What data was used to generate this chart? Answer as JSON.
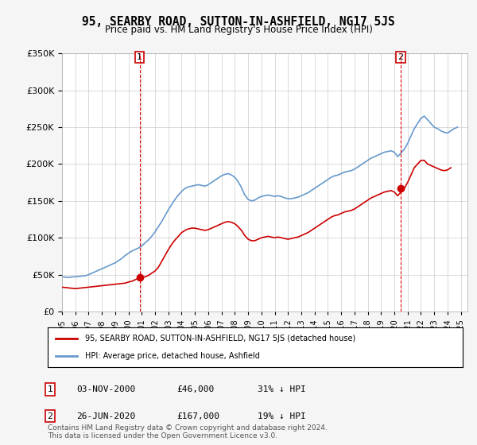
{
  "title": "95, SEARBY ROAD, SUTTON-IN-ASHFIELD, NG17 5JS",
  "subtitle": "Price paid vs. HM Land Registry's House Price Index (HPI)",
  "ylabel_ticks": [
    "£0",
    "£50K",
    "£100K",
    "£150K",
    "£200K",
    "£250K",
    "£300K",
    "£350K"
  ],
  "ylim": [
    0,
    350000
  ],
  "xlim_start": 1995.0,
  "xlim_end": 2025.5,
  "grid_color": "#cccccc",
  "bg_color": "#f5f5f5",
  "plot_bg": "#ffffff",
  "red_color": "#cc0000",
  "blue_color": "#6699cc",
  "vline_color": "#dd0000",
  "marker1_x": 2000.84,
  "marker1_y": 46000,
  "marker2_x": 2020.48,
  "marker2_y": 167000,
  "legend_red_label": "95, SEARBY ROAD, SUTTON-IN-ASHFIELD, NG17 5JS (detached house)",
  "legend_blue_label": "HPI: Average price, detached house, Ashfield",
  "table_row1": [
    "1",
    "03-NOV-2000",
    "£46,000",
    "31% ↓ HPI"
  ],
  "table_row2": [
    "2",
    "26-JUN-2020",
    "£167,000",
    "19% ↓ HPI"
  ],
  "footnote": "Contains HM Land Registry data © Crown copyright and database right 2024.\nThis data is licensed under the Open Government Licence v3.0.",
  "hpi_data_x": [
    1995.0,
    1995.25,
    1995.5,
    1995.75,
    1996.0,
    1996.25,
    1996.5,
    1996.75,
    1997.0,
    1997.25,
    1997.5,
    1997.75,
    1998.0,
    1998.25,
    1998.5,
    1998.75,
    1999.0,
    1999.25,
    1999.5,
    1999.75,
    2000.0,
    2000.25,
    2000.5,
    2000.75,
    2001.0,
    2001.25,
    2001.5,
    2001.75,
    2002.0,
    2002.25,
    2002.5,
    2002.75,
    2003.0,
    2003.25,
    2003.5,
    2003.75,
    2004.0,
    2004.25,
    2004.5,
    2004.75,
    2005.0,
    2005.25,
    2005.5,
    2005.75,
    2006.0,
    2006.25,
    2006.5,
    2006.75,
    2007.0,
    2007.25,
    2007.5,
    2007.75,
    2008.0,
    2008.25,
    2008.5,
    2008.75,
    2009.0,
    2009.25,
    2009.5,
    2009.75,
    2010.0,
    2010.25,
    2010.5,
    2010.75,
    2011.0,
    2011.25,
    2011.5,
    2011.75,
    2012.0,
    2012.25,
    2012.5,
    2012.75,
    2013.0,
    2013.25,
    2013.5,
    2013.75,
    2014.0,
    2014.25,
    2014.5,
    2014.75,
    2015.0,
    2015.25,
    2015.5,
    2015.75,
    2016.0,
    2016.25,
    2016.5,
    2016.75,
    2017.0,
    2017.25,
    2017.5,
    2017.75,
    2018.0,
    2018.25,
    2018.5,
    2018.75,
    2019.0,
    2019.25,
    2019.5,
    2019.75,
    2020.0,
    2020.25,
    2020.5,
    2020.75,
    2021.0,
    2021.25,
    2021.5,
    2021.75,
    2022.0,
    2022.25,
    2022.5,
    2022.75,
    2023.0,
    2023.25,
    2023.5,
    2023.75,
    2024.0,
    2024.25,
    2024.5,
    2024.75
  ],
  "hpi_data_y": [
    47000,
    46500,
    46200,
    46800,
    47200,
    47500,
    48000,
    48500,
    50000,
    52000,
    54000,
    56000,
    58000,
    60000,
    62000,
    64000,
    66000,
    69000,
    72000,
    76000,
    79000,
    82000,
    84000,
    86000,
    89000,
    93000,
    97000,
    102000,
    108000,
    115000,
    122000,
    130000,
    138000,
    145000,
    152000,
    158000,
    163000,
    167000,
    169000,
    170000,
    171000,
    172000,
    171000,
    170000,
    172000,
    175000,
    178000,
    181000,
    184000,
    186000,
    187000,
    185000,
    182000,
    176000,
    168000,
    158000,
    152000,
    150000,
    151000,
    154000,
    156000,
    157000,
    158000,
    157000,
    156000,
    157000,
    156000,
    154000,
    153000,
    153000,
    154000,
    155000,
    157000,
    159000,
    161000,
    164000,
    167000,
    170000,
    173000,
    176000,
    179000,
    182000,
    184000,
    185000,
    187000,
    189000,
    190000,
    191000,
    193000,
    196000,
    199000,
    202000,
    205000,
    208000,
    210000,
    212000,
    214000,
    216000,
    217000,
    218000,
    216000,
    210000,
    215000,
    220000,
    228000,
    238000,
    248000,
    255000,
    262000,
    265000,
    260000,
    255000,
    250000,
    248000,
    245000,
    243000,
    242000,
    245000,
    248000,
    250000
  ],
  "red_data_x": [
    1995.0,
    1995.25,
    1995.5,
    1995.75,
    1996.0,
    1996.25,
    1996.5,
    1996.75,
    1997.0,
    1997.25,
    1997.5,
    1997.75,
    1998.0,
    1998.25,
    1998.5,
    1998.75,
    1999.0,
    1999.25,
    1999.5,
    1999.75,
    2000.0,
    2000.25,
    2000.5,
    2000.75,
    2001.0,
    2001.25,
    2001.5,
    2001.75,
    2002.0,
    2002.25,
    2002.5,
    2002.75,
    2003.0,
    2003.25,
    2003.5,
    2003.75,
    2004.0,
    2004.25,
    2004.5,
    2004.75,
    2005.0,
    2005.25,
    2005.5,
    2005.75,
    2006.0,
    2006.25,
    2006.5,
    2006.75,
    2007.0,
    2007.25,
    2007.5,
    2007.75,
    2008.0,
    2008.25,
    2008.5,
    2008.75,
    2009.0,
    2009.25,
    2009.5,
    2009.75,
    2010.0,
    2010.25,
    2010.5,
    2010.75,
    2011.0,
    2011.25,
    2011.5,
    2011.75,
    2012.0,
    2012.25,
    2012.5,
    2012.75,
    2013.0,
    2013.25,
    2013.5,
    2013.75,
    2014.0,
    2014.25,
    2014.5,
    2014.75,
    2015.0,
    2015.25,
    2015.5,
    2015.75,
    2016.0,
    2016.25,
    2016.5,
    2016.75,
    2017.0,
    2017.25,
    2017.5,
    2017.75,
    2018.0,
    2018.25,
    2018.5,
    2018.75,
    2019.0,
    2019.25,
    2019.5,
    2019.75,
    2020.0,
    2020.25,
    2020.5,
    2020.75,
    2021.0,
    2021.25,
    2021.5,
    2021.75,
    2022.0,
    2022.25,
    2022.5,
    2022.75,
    2023.0,
    2023.25,
    2023.5,
    2023.75,
    2024.0,
    2024.25
  ],
  "red_data_y": [
    33000,
    32500,
    32000,
    31500,
    31000,
    31500,
    32000,
    32500,
    33000,
    33500,
    34000,
    34500,
    35000,
    35500,
    36000,
    36500,
    37000,
    37500,
    38000,
    38500,
    40000,
    41000,
    43000,
    45000,
    46000,
    47000,
    49000,
    52000,
    55000,
    60000,
    68000,
    76000,
    84000,
    91000,
    97000,
    102000,
    107000,
    110000,
    112000,
    113000,
    113000,
    112000,
    111000,
    110000,
    111000,
    113000,
    115000,
    117000,
    119000,
    121000,
    122000,
    121000,
    119000,
    115000,
    110000,
    103000,
    98000,
    96000,
    96000,
    98000,
    100000,
    101000,
    102000,
    101000,
    100000,
    101000,
    100000,
    99000,
    98000,
    99000,
    100000,
    101000,
    103000,
    105000,
    107000,
    110000,
    113000,
    116000,
    119000,
    122000,
    125000,
    128000,
    130000,
    131000,
    133000,
    135000,
    136000,
    137000,
    139000,
    142000,
    145000,
    148000,
    151000,
    154000,
    156000,
    158000,
    160000,
    162000,
    163000,
    164000,
    162000,
    157000,
    162000,
    167000,
    175000,
    185000,
    195000,
    200000,
    205000,
    205000,
    200000,
    198000,
    196000,
    194000,
    192000,
    191000,
    192000,
    195000
  ]
}
